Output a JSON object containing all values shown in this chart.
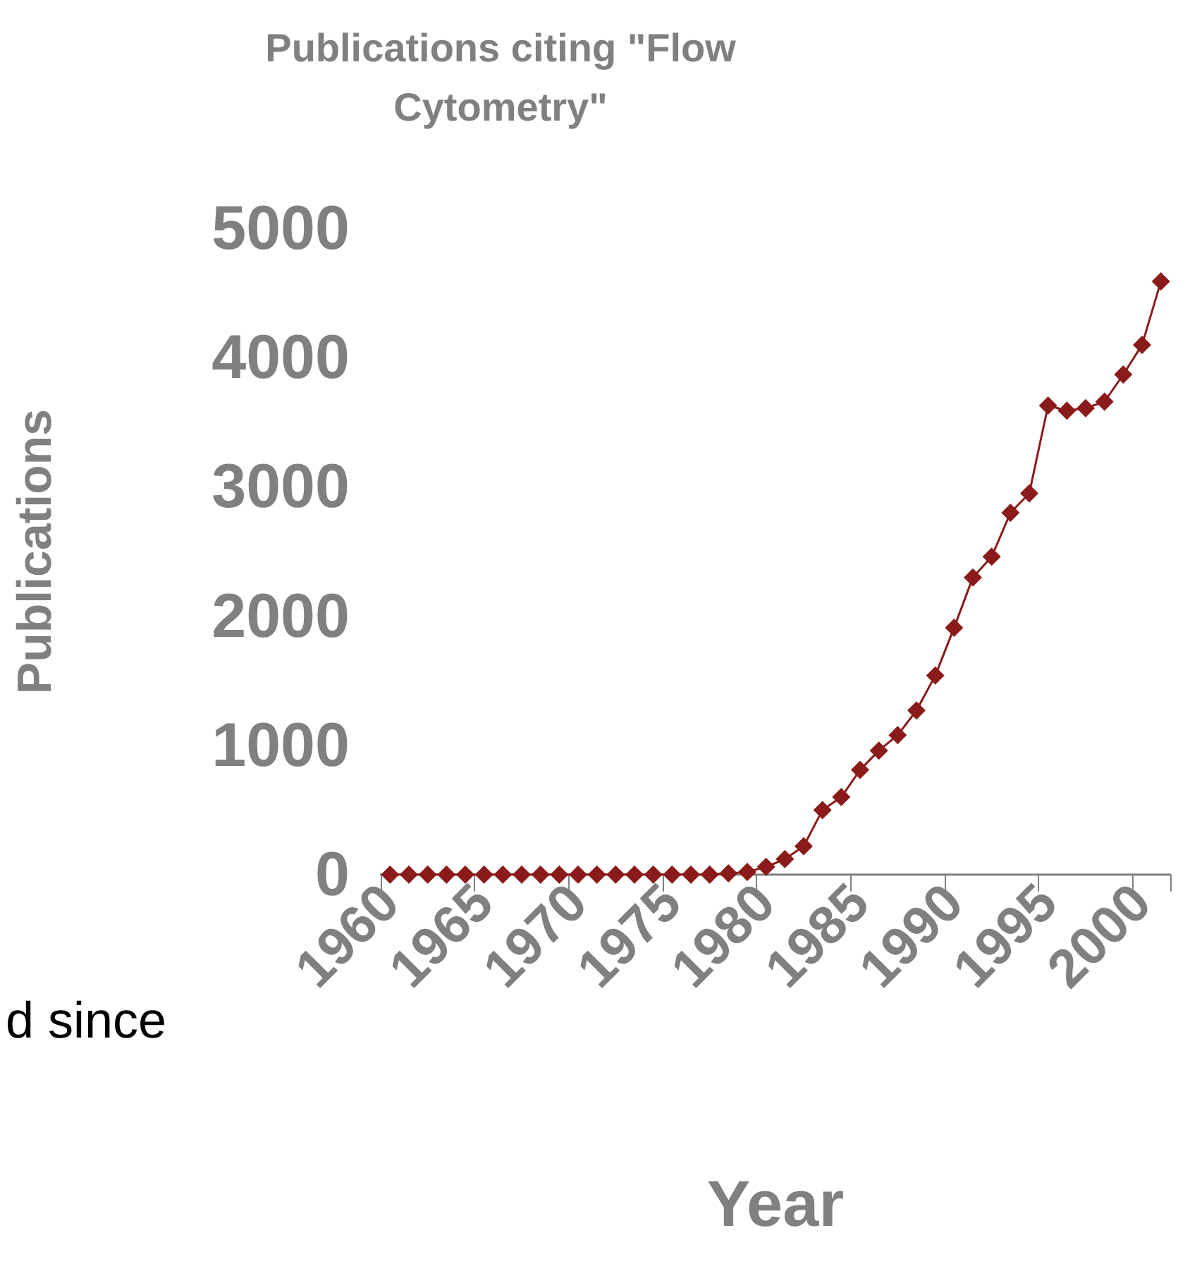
{
  "chart_data": {
    "type": "line",
    "title": "Publications citing \"Flow\nCytometry\"",
    "xlabel": "Year",
    "ylabel": "Publications",
    "categories": [
      "1960",
      null,
      null,
      null,
      null,
      "1965",
      null,
      null,
      null,
      null,
      "1970",
      null,
      null,
      null,
      null,
      "1975",
      null,
      null,
      null,
      null,
      "1980",
      null,
      null,
      null,
      null,
      "1985",
      null,
      null,
      null,
      null,
      "1990",
      null,
      null,
      null,
      null,
      "1995",
      null,
      null,
      null,
      null,
      "2000",
      null
    ],
    "series": [
      {
        "color": "#8b1a1a",
        "values": [
          0,
          0,
          0,
          0,
          0,
          0,
          0,
          0,
          0,
          0,
          0,
          0,
          0,
          0,
          0,
          0,
          0,
          0,
          10,
          20,
          60,
          120,
          220,
          500,
          600,
          810,
          960,
          1080,
          1270,
          1540,
          1910,
          2300,
          2460,
          2800,
          2950,
          3630,
          3590,
          3610,
          3660,
          3870,
          4100,
          4590
        ]
      }
    ],
    "ylim": [
      0,
      5000
    ],
    "yticks": [
      0,
      1000,
      2000,
      3000,
      4000,
      5000
    ],
    "grid": false,
    "marker": "diamond",
    "line_style": "solid",
    "annotations": [
      "d since"
    ]
  }
}
